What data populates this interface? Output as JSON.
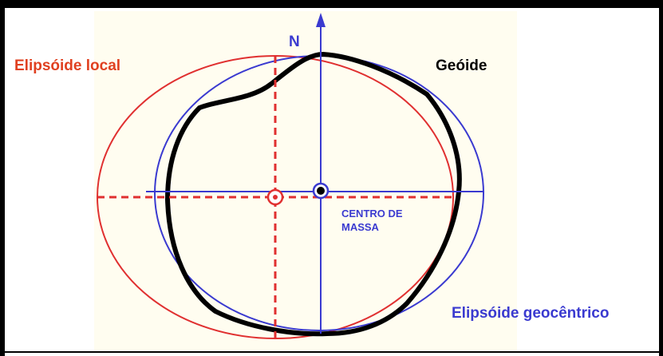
{
  "labels": {
    "local_ellipsoid": "Elipsóide local",
    "geoid": "Geóide",
    "north": "N",
    "center_of_mass": [
      "CENTRO DE",
      "MASSA"
    ],
    "geocentric_ellipsoid": "Elipsóide geocêntrico"
  }
}
